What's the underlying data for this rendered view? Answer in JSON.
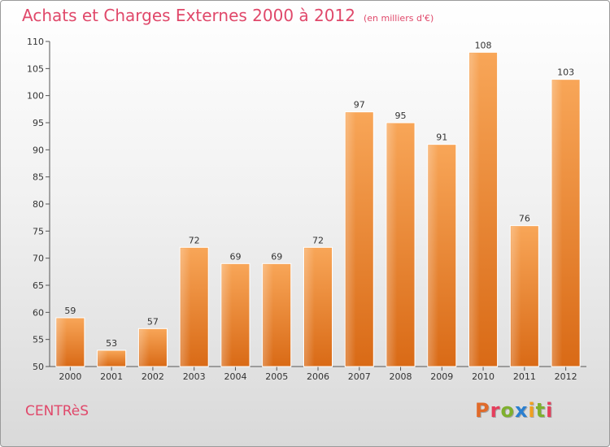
{
  "header": {
    "title": "Achats et Charges Externes 2000 à 2012",
    "subtitle": "(en milliers d'€)"
  },
  "footer": {
    "town": "CENTRèS",
    "logo": "Proxiti",
    "logo_colors": [
      "#e06a2a",
      "#e53e5c",
      "#7fb02e",
      "#2a7fd0",
      "#f0a020",
      "#7fb02e",
      "#e53e5c"
    ]
  },
  "chart_data": {
    "type": "bar",
    "title": "Achats et Charges Externes 2000 à 2012",
    "subtitle": "(en milliers d'€)",
    "xlabel": "",
    "ylabel": "",
    "categories": [
      "2000",
      "2001",
      "2002",
      "2003",
      "2004",
      "2005",
      "2006",
      "2007",
      "2008",
      "2009",
      "2010",
      "2011",
      "2012"
    ],
    "values": [
      59,
      53,
      57,
      72,
      69,
      69,
      72,
      97,
      95,
      91,
      108,
      76,
      103
    ],
    "ylim": [
      50,
      110
    ],
    "yticks": [
      50,
      55,
      60,
      65,
      70,
      75,
      80,
      85,
      90,
      95,
      100,
      105,
      110
    ],
    "grid": false,
    "legend": "none",
    "bar_color": "#f08a32"
  }
}
